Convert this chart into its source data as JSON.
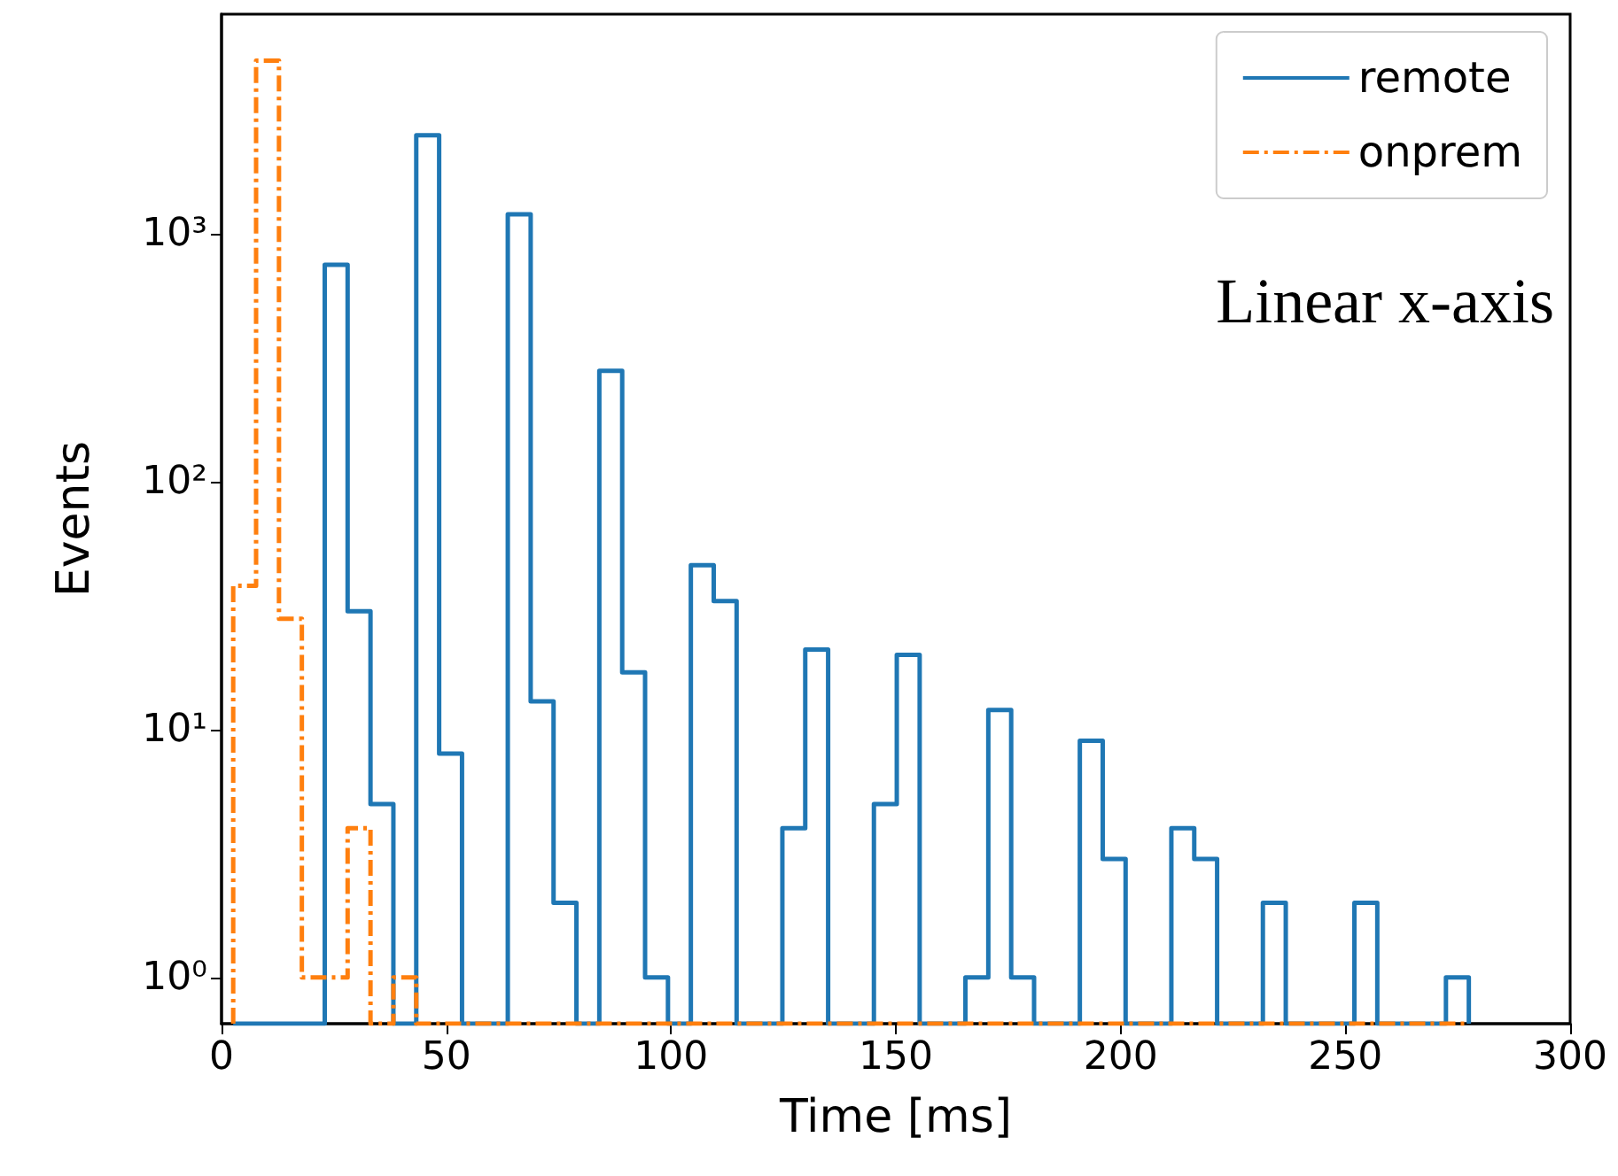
{
  "chart_data": {
    "type": "histogram",
    "xlabel": "Time [ms]",
    "ylabel": "Events",
    "annotations": [
      "Linear x-axis"
    ],
    "xlim": [
      0,
      300
    ],
    "xticks": [
      0,
      50,
      100,
      150,
      200,
      250,
      300
    ],
    "ylim": [
      0.65,
      7700
    ],
    "yticks": [
      {
        "value": 1,
        "label": "10⁰"
      },
      {
        "value": 10,
        "label": "10¹"
      },
      {
        "value": 100,
        "label": "10²"
      },
      {
        "value": 1000,
        "label": "10³"
      }
    ],
    "log": "y",
    "grid": false,
    "legend": "top right",
    "bins": [
      2.6,
      7.69,
      12.78,
      17.87,
      22.96,
      28.05,
      33.14,
      38.23,
      43.32,
      48.41,
      53.5,
      58.59,
      63.68,
      68.77,
      73.86,
      78.95,
      84.04,
      89.13,
      94.22,
      99.31,
      104.4,
      109.49,
      114.58,
      119.67,
      124.76,
      129.85,
      134.94,
      140.03,
      145.12,
      150.21,
      155.3,
      160.39,
      165.48,
      170.57,
      175.66,
      180.75,
      185.84,
      190.93,
      196.02,
      201.11,
      206.2,
      211.29,
      216.38,
      221.47,
      226.56,
      231.65,
      236.74,
      241.83,
      246.92,
      252.01,
      257.1,
      262.19,
      267.28,
      272.37,
      277.46
    ],
    "series": [
      {
        "name": "remote",
        "color": "#1f77b4",
        "line_style": "solid",
        "values": [
          null,
          null,
          null,
          null,
          750,
          30,
          5,
          null,
          2500,
          8,
          null,
          null,
          1200,
          13,
          2,
          null,
          280,
          17,
          1,
          null,
          46,
          33,
          null,
          null,
          4,
          21,
          null,
          null,
          5,
          20,
          null,
          null,
          1,
          12,
          1,
          null,
          null,
          9,
          3,
          null,
          null,
          4,
          3,
          null,
          null,
          2,
          null,
          null,
          null,
          2,
          null,
          null,
          null,
          1
        ]
      },
      {
        "name": "onprem",
        "color": "#ff7f0e",
        "line_style": "dashed",
        "values": [
          38,
          5000,
          28,
          1,
          1,
          4,
          null,
          1,
          null,
          null,
          null,
          null,
          null,
          null,
          null,
          null,
          null,
          null,
          null,
          null,
          null,
          null,
          null,
          null,
          null,
          null,
          null,
          null,
          null,
          null,
          null,
          null,
          null,
          null,
          null,
          null,
          null,
          null,
          null,
          null,
          null,
          null,
          null,
          null,
          null,
          null,
          null,
          null,
          null,
          null,
          null,
          null,
          null,
          null
        ]
      }
    ]
  }
}
